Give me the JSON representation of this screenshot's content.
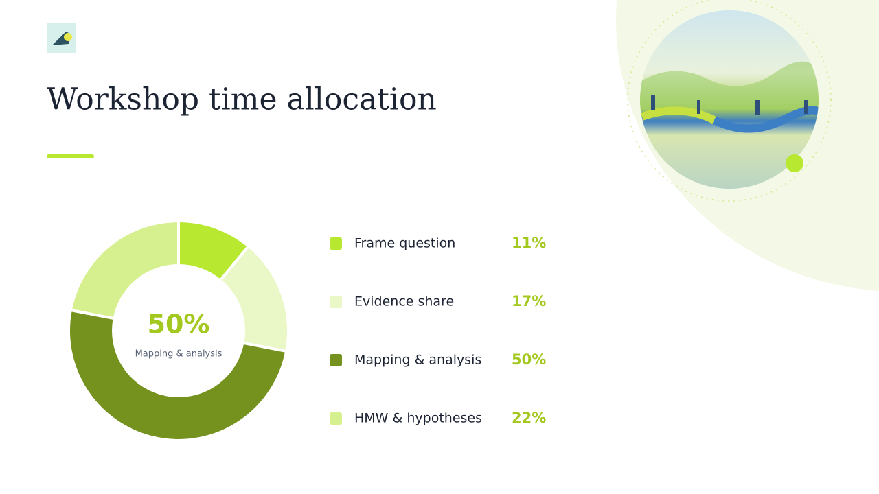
{
  "chart_data": {
    "type": "donut",
    "title": "Workshop time allocation",
    "categories": [
      "Frame question",
      "Evidence share",
      "Mapping & analysis",
      "HMW & hypotheses"
    ],
    "values": [
      11,
      17,
      50,
      22
    ],
    "value_labels": [
      "11%",
      "17%",
      "50%",
      "22%"
    ],
    "colors": [
      "#b8e82f",
      "#eaf7c6",
      "#76921e",
      "#d7f08f"
    ]
  }
}
